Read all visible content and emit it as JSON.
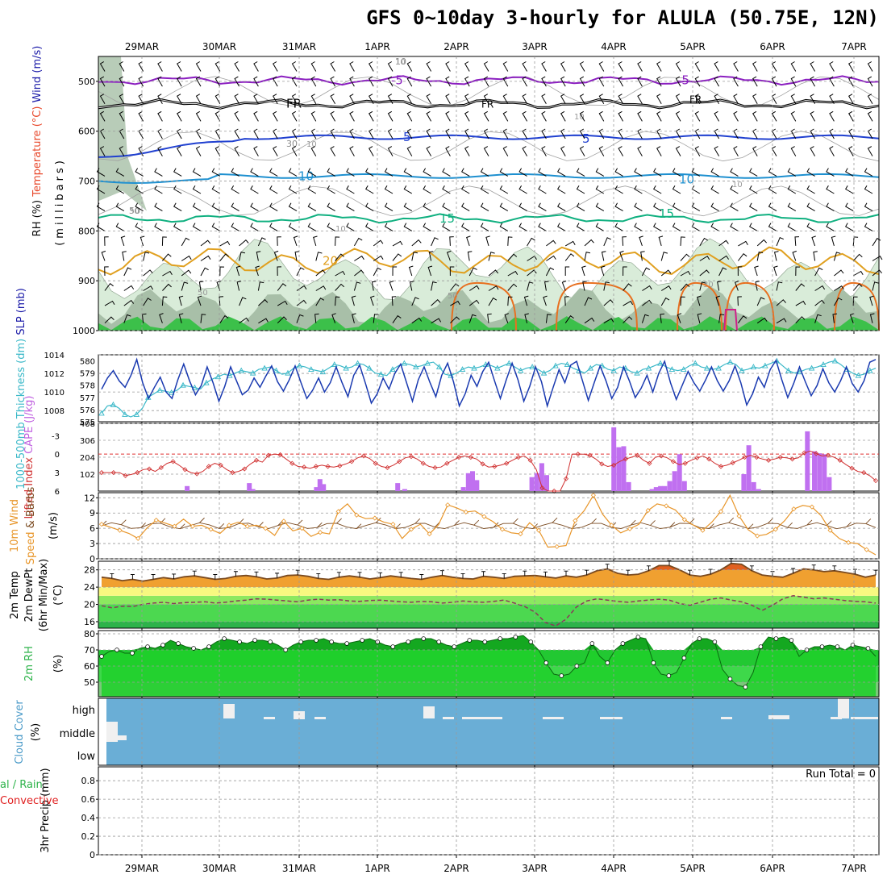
{
  "title": "GFS 0~10day 3-hourly for ALULA (50.75E, 12N)",
  "x_axis": {
    "dates": [
      "29MAR",
      "30MAR",
      "31MAR",
      "1APR",
      "2APR",
      "3APR",
      "4APR",
      "5APR",
      "6APR",
      "7APR"
    ]
  },
  "chart_data": [
    {
      "id": "profile",
      "type": "contour",
      "ylabel_parts": [
        {
          "text": "RH (%)",
          "color": "#0a0a0a",
          "bg": "#2db34a"
        },
        {
          "text": "Temperature (°C)",
          "color": "#e8472a"
        },
        {
          "text": "Wind (m/s)",
          "color": "#1a1aa8"
        }
      ],
      "yunits_label": "(millibars)",
      "yticks": [
        500,
        600,
        700,
        800,
        900,
        1000
      ],
      "ylim": [
        1000,
        450
      ],
      "temperature_contours": [
        {
          "label": "-5",
          "color": "#8b1fc0",
          "level_mb": 498
        },
        {
          "label": "FR",
          "color": "#000000",
          "level_mb": 545
        },
        {
          "label": "5",
          "color": "#2040d0",
          "level_mb": 612
        },
        {
          "label": "10",
          "color": "#1e90d0",
          "level_mb": 690
        },
        {
          "label": "15",
          "color": "#10b080",
          "level_mb": 775
        },
        {
          "label": "20",
          "color": "#e0a020",
          "level_mb": 860
        }
      ],
      "rh_labels": [
        "10",
        "30",
        "50"
      ]
    },
    {
      "id": "slp_thickness",
      "type": "line",
      "ylabel_parts": [
        {
          "text": "1000-500mb",
          "color": "#3ab8c8"
        },
        {
          "text": "Thickness (dm)",
          "color": "#3ab8c8"
        },
        {
          "text": "SLP (mb)",
          "color": "#1a1aa8"
        }
      ],
      "left_ticks": [
        575,
        576,
        577,
        578,
        579,
        580
      ],
      "left_range": [
        575,
        580.5
      ],
      "right_ticks": [
        1008,
        1010,
        1012,
        1014
      ],
      "right_range": [
        1006.8,
        1014
      ],
      "slp": [
        1010.3,
        1011.5,
        1012.3,
        1011.2,
        1010.5,
        1011.8,
        1013.5,
        1011.0,
        1009.3,
        1010.5,
        1011.6,
        1010.0,
        1009.3,
        1011.3,
        1013.0,
        1011.2,
        1009.7,
        1010.7,
        1012.7,
        1011.0,
        1009.0,
        1010.6,
        1012.7,
        1011.2,
        1009.7,
        1010.2,
        1011.5,
        1010.5,
        1011.7,
        1012.8,
        1011.1,
        1010.1,
        1011.3,
        1012.8,
        1011.0,
        1009.3,
        1010.2,
        1011.5,
        1010.0,
        1011.0,
        1012.7,
        1011.0,
        1009.5,
        1011.8,
        1012.9,
        1010.9,
        1008.8,
        1009.8,
        1011.5,
        1010.3,
        1012.0,
        1013.0,
        1011.0,
        1009.0,
        1011.3,
        1012.7,
        1011.0,
        1009.5,
        1011.8,
        1013.1,
        1011.1,
        1008.5,
        1009.8,
        1011.8,
        1010.6,
        1012.2,
        1013.2,
        1011.2,
        1009.3,
        1011.3,
        1013.1,
        1011.3,
        1009.0,
        1010.6,
        1012.7,
        1011.1,
        1008.5,
        1010.5,
        1012.4,
        1011.0,
        1012.9,
        1013.3,
        1011.2,
        1009.1,
        1011.0,
        1012.8,
        1011.2,
        1009.3,
        1010.5,
        1012.7,
        1011.2,
        1009.4,
        1010.4,
        1011.8,
        1010.0,
        1012.0,
        1013.3,
        1011.0,
        1009.2,
        1010.7,
        1012.2,
        1011.0,
        1010.1,
        1011.3,
        1012.7,
        1011.2,
        1010.1,
        1011.2,
        1012.8,
        1011.0,
        1008.6,
        1009.8,
        1011.6,
        1010.5,
        1012.4,
        1013.4,
        1011.3,
        1009.4,
        1010.9,
        1012.7,
        1011.1,
        1009.6,
        1010.7,
        1012.5,
        1011.0,
        1010.0,
        1011.2,
        1012.7,
        1010.9,
        1010.0,
        1011.2,
        1013.2,
        1013.5
      ],
      "thickness": [
        575.7,
        576.3,
        576.4,
        576.1,
        575.6,
        575.4,
        575.6,
        576.1,
        577.0,
        577.3,
        577.6,
        577.5,
        577.4,
        577.6,
        578.0,
        577.9,
        577.8,
        577.7,
        578.2,
        578.5,
        578.7,
        578.9,
        578.8,
        579.0,
        579.2,
        579.1,
        579.0,
        579.3,
        579.4,
        579.5,
        579.2,
        578.9,
        579.0,
        579.4,
        579.6,
        579.5,
        579.3,
        579.2,
        579.1,
        579.4,
        579.7,
        579.6,
        579.4,
        579.5,
        579.8,
        579.7,
        579.4,
        579.0,
        578.9,
        578.8,
        579.3,
        579.6,
        579.8,
        579.7,
        579.5,
        579.6,
        579.8,
        579.9,
        579.5,
        578.9,
        578.8,
        579.0,
        579.3,
        579.5,
        579.4,
        579.5,
        579.7,
        579.6,
        579.4,
        579.6,
        579.8,
        579.5,
        579.2,
        579.4,
        579.5,
        579.3,
        579.0,
        579.2,
        579.6,
        579.8,
        579.7,
        579.4,
        579.2,
        579.0,
        579.4,
        579.7,
        579.6,
        579.3,
        579.2,
        579.5,
        579.4,
        579.1,
        579.0,
        579.3,
        579.4,
        579.6,
        579.8,
        579.5,
        579.3,
        579.2,
        579.3,
        579.6,
        579.8,
        579.5,
        579.4,
        579.3,
        579.4,
        579.7,
        579.9,
        579.7,
        579.2,
        579.3,
        579.5,
        579.4,
        579.6,
        579.8,
        580.0,
        579.6,
        579.2,
        579.0,
        579.1,
        579.3,
        579.4,
        579.5,
        579.7,
        579.9,
        580.0,
        579.7,
        579.3,
        579.0,
        578.8,
        578.9,
        579.2,
        579.4
      ]
    },
    {
      "id": "cape_li",
      "type": "bar+line",
      "ylabel_parts": [
        {
          "text": "Lifted Index",
          "color": "#d03030"
        },
        {
          "text": "CAPE (J/kg)",
          "color": "#c060e0"
        }
      ],
      "left_ticks": [
        "-3",
        "0",
        "3",
        "6"
      ],
      "left_range": [
        6,
        -5
      ],
      "right_ticks": [
        "102",
        "204",
        "306",
        "408"
      ],
      "right_range": [
        0,
        408
      ],
      "reference_line": 0,
      "lifted_index": [
        3.0,
        3.0,
        3.0,
        3.0,
        3.5,
        3.3,
        3.0,
        2.5,
        2.4,
        2.8,
        2.2,
        1.5,
        1.2,
        1.8,
        2.5,
        3.0,
        3.2,
        2.8,
        2.0,
        1.5,
        1.8,
        2.5,
        3.0,
        2.8,
        2.4,
        1.6,
        1.0,
        1.3,
        0.2,
        0.0,
        0.1,
        0.8,
        1.5,
        2.0,
        2.1,
        2.3,
        2.0,
        1.8,
        2.0,
        2.1,
        1.9,
        1.6,
        1.2,
        0.6,
        0.3,
        0.7,
        1.5,
        2.0,
        2.2,
        1.8,
        1.2,
        0.6,
        0.4,
        0.8,
        1.5,
        2.0,
        2.2,
        2.1,
        1.5,
        1.0,
        0.5,
        0.3,
        0.5,
        0.8,
        1.6,
        2.1,
        2.0,
        1.8,
        1.5,
        1.0,
        0.5,
        0.3,
        1.0,
        2.5,
        5.5,
        6.0,
        6.0,
        6.0,
        4.0,
        0.0,
        0.0,
        0.0,
        0.2,
        0.8,
        1.6,
        2.0,
        1.8,
        1.2,
        0.8,
        0.5,
        0.2,
        1.0,
        1.5,
        0.5,
        0.3,
        0.6,
        1.2,
        1.7,
        1.5,
        1.0,
        0.6,
        0.3,
        0.8,
        1.5,
        2.0,
        1.8,
        1.4,
        1.0,
        0.5,
        0.2,
        0.5,
        0.8,
        1.0,
        0.8,
        0.5,
        0.6,
        0.8,
        0.6,
        -0.2,
        -0.5,
        -0.1,
        0.3,
        0.2,
        0.5,
        1.0,
        1.7,
        2.3,
        2.8,
        3.0,
        3.5,
        4.3
      ],
      "cape": [
        0,
        0,
        0,
        0,
        0,
        0,
        0,
        0,
        0,
        0,
        0,
        0,
        0,
        48,
        12,
        0,
        0,
        0,
        0,
        0,
        0,
        0,
        24,
        72,
        42,
        0,
        0,
        0,
        0,
        0,
        0,
        0,
        0,
        48,
        12,
        0,
        0,
        0,
        0,
        0,
        0,
        0,
        24,
        108,
        126,
        66,
        0,
        0,
        0,
        0,
        0,
        0,
        0,
        0,
        0,
        0,
        84,
        108,
        168,
        96,
        0,
        0,
        0,
        0,
        0,
        0,
        0,
        0,
        0,
        0,
        0,
        0,
        0,
        0,
        0,
        0,
        0,
        0,
        0,
        0,
        0,
        384,
        264,
        270,
        54,
        0,
        0,
        0,
        0,
        0,
        0,
        12,
        24,
        30,
        30,
        60,
        120,
        222,
        60,
        0,
        0,
        0,
        0,
        0,
        0,
        0,
        0,
        0,
        0,
        0,
        0,
        102,
        276,
        54,
        12,
        0,
        0,
        0,
        0,
        0,
        0,
        0,
        0,
        0,
        0,
        0,
        0,
        0,
        0,
        0,
        0,
        0,
        0
      ],
      "cape_bars": [
        [
          0.112,
          30
        ],
        [
          0.2,
          48
        ],
        [
          0.205,
          12
        ],
        [
          0.295,
          24
        ],
        [
          0.3,
          72
        ],
        [
          0.305,
          42
        ],
        [
          0.41,
          48
        ],
        [
          0.42,
          12
        ],
        [
          0.503,
          24
        ],
        [
          0.51,
          108
        ],
        [
          0.516,
          120
        ],
        [
          0.522,
          66
        ],
        [
          0.6,
          84
        ],
        [
          0.607,
          108
        ],
        [
          0.614,
          168
        ],
        [
          0.621,
          96
        ],
        [
          0.716,
          384
        ],
        [
          0.723,
          264
        ],
        [
          0.73,
          270
        ],
        [
          0.737,
          54
        ],
        [
          0.77,
          12
        ],
        [
          0.776,
          24
        ],
        [
          0.782,
          30
        ],
        [
          0.788,
          30
        ],
        [
          0.795,
          60
        ],
        [
          0.802,
          120
        ],
        [
          0.809,
          222
        ],
        [
          0.816,
          60
        ],
        [
          0.9,
          102
        ],
        [
          0.907,
          276
        ],
        [
          0.914,
          54
        ],
        [
          0.921,
          12
        ],
        [
          0.99,
          360
        ],
        [
          1.0,
          240
        ],
        [
          1.007,
          228
        ],
        [
          1.014,
          222
        ],
        [
          1.021,
          84
        ]
      ]
    },
    {
      "id": "wind10m",
      "type": "line",
      "ylabel_parts": [
        {
          "text": "10m Wind",
          "color": "#e8962a"
        },
        {
          "text": "Speed",
          "color": "#e8962a"
        },
        {
          "text": "& Barbs",
          "color": "#7a4a20"
        },
        {
          "text": "(m/s)",
          "color": "#000000"
        }
      ],
      "yticks": [
        0,
        3,
        6,
        9,
        12
      ],
      "ylim": [
        0,
        13
      ],
      "speed": [
        6.8,
        6.2,
        5.6,
        5.0,
        4.0,
        6.1,
        7.6,
        7.0,
        6.4,
        7.8,
        6.4,
        6.6,
        5.8,
        5.0,
        6.6,
        7.2,
        6.4,
        6.6,
        6.0,
        4.6,
        7.4,
        5.5,
        6.0,
        4.4,
        5.2,
        4.9,
        9.3,
        10.8,
        8.6,
        7.9,
        8.0,
        7.2,
        6.8,
        4.0,
        5.8,
        6.8,
        4.9,
        6.7,
        10.6,
        10.0,
        9.2,
        9.4,
        8.3,
        7.3,
        5.8,
        5.1,
        4.9,
        7.1,
        5.6,
        2.3,
        2.4,
        2.6,
        7.5,
        9.5,
        12.5,
        8.8,
        6.6,
        5.1,
        5.9,
        6.8,
        9.5,
        10.8,
        10.4,
        9.6,
        7.7,
        6.6,
        5.6,
        7.2,
        9.3,
        12.5,
        8.4,
        5.7,
        4.5,
        4.8,
        5.8,
        7.5,
        9.8,
        10.5,
        10.2,
        8.5,
        5.6,
        4.0,
        3.2,
        3.0,
        1.8,
        0.8
      ]
    },
    {
      "id": "temp2m",
      "type": "area",
      "ylabel_parts": [
        {
          "text": "2m Temp",
          "color": "#000000"
        },
        {
          "text": "2m DewPt",
          "color": "#000000"
        },
        {
          "text": "(6hr Min/Max)",
          "color": "#000000"
        },
        {
          "text": "(°C)",
          "color": "#000000"
        }
      ],
      "yticks": [
        16,
        20,
        24,
        28
      ],
      "ylim": [
        14.5,
        30
      ],
      "temperature": [
        26.3,
        26.0,
        25.5,
        25.8,
        25.4,
        25.8,
        26.2,
        25.9,
        26.4,
        26.6,
        26.2,
        25.8,
        26.0,
        26.5,
        26.7,
        26.4,
        25.9,
        26.1,
        26.7,
        26.8,
        26.5,
        26.0,
        25.8,
        26.3,
        26.6,
        26.3,
        25.9,
        26.2,
        26.6,
        26.3,
        26.0,
        25.8,
        26.3,
        26.7,
        26.3,
        26.0,
        25.9,
        26.5,
        26.3,
        26.0,
        26.5,
        26.6,
        26.7,
        26.4,
        26.1,
        26.6,
        26.3,
        26.8,
        27.8,
        28.2,
        27.2,
        26.8,
        27.0,
        27.8,
        29.0,
        29.0,
        28.0,
        26.8,
        26.5,
        27.0,
        28.0,
        29.5,
        29.3,
        27.8,
        26.8,
        26.5,
        26.3,
        27.2,
        28.2,
        28.0,
        27.6,
        27.8,
        27.4,
        27.0,
        26.3,
        26.8
      ],
      "dewpoint": [
        19.7,
        19.2,
        19.6,
        19.5,
        20.0,
        20.3,
        20.5,
        20.2,
        20.4,
        20.5,
        20.6,
        20.3,
        20.5,
        20.8,
        21.0,
        21.3,
        21.2,
        21.0,
        20.8,
        20.6,
        21.0,
        21.2,
        21.0,
        21.1,
        20.8,
        20.7,
        20.9,
        21.0,
        20.8,
        20.6,
        20.5,
        20.7,
        20.6,
        20.3,
        20.5,
        20.8,
        20.6,
        20.5,
        20.7,
        21.0,
        20.3,
        19.5,
        18.2,
        15.8,
        15.0,
        16.6,
        19.4,
        20.8,
        21.3,
        21.0,
        20.7,
        20.5,
        20.8,
        21.0,
        21.2,
        21.0,
        20.2,
        19.8,
        20.5,
        21.2,
        21.5,
        21.0,
        20.6,
        19.8,
        18.6,
        19.8,
        21.3,
        22.0,
        21.7,
        21.3,
        21.5,
        21.2,
        20.9,
        20.7,
        20.6,
        20.3
      ]
    },
    {
      "id": "rh2m",
      "type": "area",
      "ylabel_parts": [
        {
          "text": "2m RH",
          "color": "#2db34a"
        },
        {
          "text": "(%)",
          "color": "#000000"
        }
      ],
      "yticks": [
        50,
        60,
        70,
        80
      ],
      "ylim": [
        41,
        82
      ],
      "rh": [
        66,
        69,
        70,
        68,
        68,
        71,
        72,
        71,
        73,
        76,
        74,
        72,
        71,
        70,
        72,
        75,
        77,
        76,
        75,
        74,
        76,
        76,
        75,
        73,
        70,
        73,
        75,
        76,
        76,
        77,
        75,
        74,
        74,
        75,
        76,
        77,
        75,
        73,
        72,
        74,
        75,
        77,
        77,
        77,
        75,
        73,
        72,
        74,
        76,
        76,
        75,
        76,
        77,
        77,
        78,
        79,
        75,
        70,
        62,
        55,
        54,
        55,
        60,
        62,
        74,
        66,
        62,
        70,
        74,
        76,
        78,
        77,
        62,
        55,
        54,
        56,
        65,
        74,
        77,
        77,
        75,
        58,
        52,
        48,
        47,
        56,
        72,
        78,
        77,
        78,
        76,
        66,
        70,
        72,
        72,
        73,
        72,
        70,
        73,
        72,
        71,
        66
      ]
    },
    {
      "id": "cloud",
      "type": "bar",
      "ylabel_parts": [
        {
          "text": "Cloud Cover",
          "color": "#4a9ac8"
        },
        {
          "text": "(%)",
          "color": "#000000"
        }
      ],
      "levels": [
        "high",
        "middle",
        "low"
      ]
    },
    {
      "id": "precip",
      "type": "bar",
      "ylabel_parts": [
        {
          "text": "Total / Rain",
          "color": "#2db34a"
        },
        {
          "text": "Convective",
          "color": "#e02020"
        },
        {
          "text": "3hr Precip (mm)",
          "color": "#000000"
        }
      ],
      "yticks": [
        "0",
        "0.2",
        "0.4",
        "0.6",
        "0.8"
      ],
      "ylim": [
        0,
        0.95
      ],
      "run_total": "Run Total = 0"
    }
  ]
}
